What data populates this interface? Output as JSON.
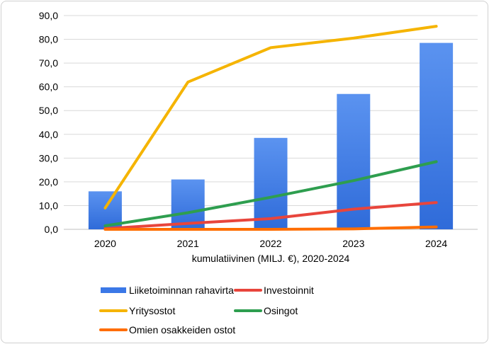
{
  "chart_data": {
    "type": "bar",
    "title": "",
    "xlabel": "kumulatiivinen (MILJ. €), 2020-2024",
    "ylabel": "",
    "categories": [
      "2020",
      "2021",
      "2022",
      "2023",
      "2024"
    ],
    "ylim": [
      0,
      90
    ],
    "y_ticks": [
      "0,0",
      "10,0",
      "20,0",
      "30,0",
      "40,0",
      "50,0",
      "60,0",
      "70,0",
      "80,0",
      "90,0"
    ],
    "grid": true,
    "legend_position": "bottom",
    "bar_series": [
      {
        "name": "Liiketoiminnan rahavirta",
        "color": "#3b78e7",
        "values": [
          16.0,
          21.0,
          38.5,
          57.0,
          78.5
        ]
      }
    ],
    "line_series": [
      {
        "name": "Investoinnit",
        "color": "#e8453c",
        "values": [
          0.3,
          2.5,
          4.5,
          8.5,
          11.3
        ]
      },
      {
        "name": "Yritysostot",
        "color": "#f5b400",
        "values": [
          9.0,
          62.0,
          76.5,
          80.5,
          85.5
        ]
      },
      {
        "name": "Osingot",
        "color": "#2e9e4f",
        "values": [
          1.5,
          7.0,
          13.5,
          20.5,
          28.5
        ]
      },
      {
        "name": "Omien osakkeiden ostot",
        "color": "#ff6d00",
        "values": [
          0.0,
          0.0,
          0.0,
          0.2,
          1.0
        ]
      }
    ],
    "legend": [
      "Liiketoiminnan rahavirta",
      "Investoinnit",
      "Yritysostot",
      "Osingot",
      "Omien osakkeiden ostot"
    ]
  }
}
